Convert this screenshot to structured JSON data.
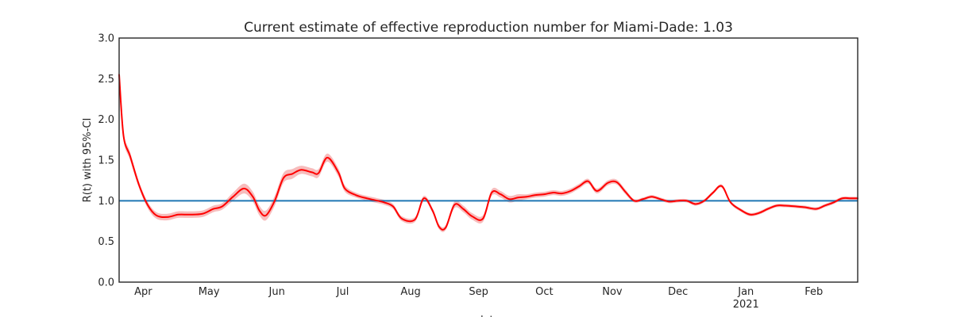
{
  "chart_data": {
    "type": "line",
    "title": "Current estimate of effective reproduction number for Miami-Dade: 1.03",
    "xlabel": "date",
    "ylabel": "R(t) with 95%-CI",
    "ylim": [
      0.0,
      3.0
    ],
    "y_ticks": [
      "0.0",
      "0.5",
      "1.0",
      "1.5",
      "2.0",
      "2.5",
      "3.0"
    ],
    "x_range": [
      "2020-03-21",
      "2021-02-21"
    ],
    "x_ticks": [
      {
        "date": "2020-04-01",
        "label": "Apr"
      },
      {
        "date": "2020-05-01",
        "label": "May"
      },
      {
        "date": "2020-06-01",
        "label": "Jun"
      },
      {
        "date": "2020-07-01",
        "label": "Jul"
      },
      {
        "date": "2020-08-01",
        "label": "Aug"
      },
      {
        "date": "2020-09-01",
        "label": "Sep"
      },
      {
        "date": "2020-10-01",
        "label": "Oct"
      },
      {
        "date": "2020-11-01",
        "label": "Nov"
      },
      {
        "date": "2020-12-01",
        "label": "Dec"
      },
      {
        "date": "2021-01-01",
        "label": "Jan",
        "sublabel": "2021"
      },
      {
        "date": "2021-02-01",
        "label": "Feb"
      }
    ],
    "grid": false,
    "reference_line": {
      "y": 1.0,
      "color": "#1f77b4"
    },
    "series": [
      {
        "color": "#ff0000",
        "ci_color": "#f4a6a6",
        "x": [
          "2020-03-21",
          "2020-03-23",
          "2020-03-26",
          "2020-03-30",
          "2020-04-03",
          "2020-04-07",
          "2020-04-12",
          "2020-04-17",
          "2020-04-22",
          "2020-04-28",
          "2020-05-03",
          "2020-05-07",
          "2020-05-12",
          "2020-05-17",
          "2020-05-21",
          "2020-05-24",
          "2020-05-27",
          "2020-05-31",
          "2020-06-04",
          "2020-06-08",
          "2020-06-12",
          "2020-06-17",
          "2020-06-20",
          "2020-06-24",
          "2020-06-29",
          "2020-07-02",
          "2020-07-07",
          "2020-07-12",
          "2020-07-17",
          "2020-07-20",
          "2020-07-24",
          "2020-07-28",
          "2020-08-03",
          "2020-08-07",
          "2020-08-11",
          "2020-08-14",
          "2020-08-17",
          "2020-08-21",
          "2020-08-25",
          "2020-08-29",
          "2020-09-03",
          "2020-09-07",
          "2020-09-11",
          "2020-09-15",
          "2020-09-19",
          "2020-09-23",
          "2020-09-27",
          "2020-10-01",
          "2020-10-05",
          "2020-10-09",
          "2020-10-13",
          "2020-10-17",
          "2020-10-21",
          "2020-10-25",
          "2020-10-30",
          "2020-11-03",
          "2020-11-07",
          "2020-11-11",
          "2020-11-15",
          "2020-11-19",
          "2020-11-23",
          "2020-11-27",
          "2020-12-01",
          "2020-12-05",
          "2020-12-09",
          "2020-12-13",
          "2020-12-17",
          "2020-12-21",
          "2020-12-25",
          "2020-12-30",
          "2021-01-03",
          "2021-01-07",
          "2021-01-11",
          "2021-01-15",
          "2021-01-19",
          "2021-01-24",
          "2021-01-28",
          "2021-02-02",
          "2021-02-06",
          "2021-02-10",
          "2021-02-14",
          "2021-02-18",
          "2021-02-21"
        ],
        "values": [
          2.55,
          1.8,
          1.55,
          1.2,
          0.95,
          0.82,
          0.8,
          0.83,
          0.83,
          0.84,
          0.9,
          0.93,
          1.05,
          1.15,
          1.05,
          0.88,
          0.82,
          1.0,
          1.28,
          1.33,
          1.38,
          1.35,
          1.34,
          1.53,
          1.35,
          1.15,
          1.07,
          1.03,
          1.0,
          0.98,
          0.93,
          0.78,
          0.77,
          1.03,
          0.88,
          0.68,
          0.67,
          0.95,
          0.9,
          0.81,
          0.78,
          1.1,
          1.08,
          1.02,
          1.04,
          1.05,
          1.07,
          1.08,
          1.1,
          1.09,
          1.12,
          1.18,
          1.24,
          1.12,
          1.22,
          1.23,
          1.11,
          1.0,
          1.02,
          1.05,
          1.02,
          0.99,
          1.0,
          1.0,
          0.96,
          1.0,
          1.1,
          1.18,
          0.98,
          0.88,
          0.83,
          0.85,
          0.9,
          0.94,
          0.94,
          0.93,
          0.92,
          0.9,
          0.94,
          0.98,
          1.03,
          1.03,
          1.03
        ],
        "ci_halfwidth": [
          0.06,
          0.05,
          0.05,
          0.04,
          0.04,
          0.04,
          0.04,
          0.04,
          0.04,
          0.04,
          0.04,
          0.04,
          0.05,
          0.06,
          0.06,
          0.06,
          0.06,
          0.06,
          0.06,
          0.06,
          0.05,
          0.05,
          0.05,
          0.05,
          0.05,
          0.04,
          0.03,
          0.03,
          0.03,
          0.03,
          0.03,
          0.03,
          0.03,
          0.03,
          0.03,
          0.03,
          0.03,
          0.04,
          0.04,
          0.04,
          0.04,
          0.04,
          0.04,
          0.04,
          0.04,
          0.03,
          0.03,
          0.03,
          0.03,
          0.03,
          0.03,
          0.03,
          0.03,
          0.03,
          0.03,
          0.03,
          0.03,
          0.02,
          0.02,
          0.02,
          0.02,
          0.02,
          0.02,
          0.02,
          0.02,
          0.02,
          0.02,
          0.02,
          0.02,
          0.02,
          0.02,
          0.02,
          0.02,
          0.02,
          0.02,
          0.02,
          0.02,
          0.02,
          0.02,
          0.02,
          0.02,
          0.02,
          0.02
        ]
      }
    ]
  }
}
